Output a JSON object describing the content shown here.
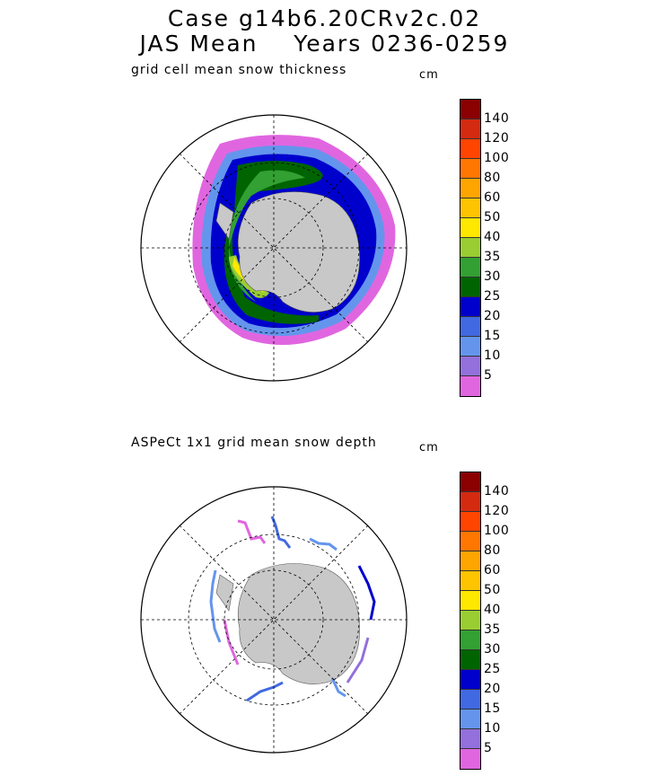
{
  "header": {
    "line1": "Case g14b6.20CRv2c.02",
    "line2": "JAS Mean    Years 0236-0259"
  },
  "panels": [
    {
      "label": "grid cell mean snow thickness",
      "unit": "cm"
    },
    {
      "label": "ASPeCt 1x1 grid mean snow depth",
      "unit": "cm"
    }
  ],
  "colorbar": {
    "levels": [
      "140",
      "120",
      "100",
      "80",
      "60",
      "50",
      "40",
      "35",
      "30",
      "25",
      "20",
      "15",
      "10",
      "5"
    ],
    "colors": [
      "#8b0000",
      "#d42a10",
      "#ff4500",
      "#ff7700",
      "#ffa500",
      "#ffc400",
      "#ffe800",
      "#9acd32",
      "#32a032",
      "#006400",
      "#0000cd",
      "#4169e1",
      "#6495ed",
      "#9370db",
      "#e066e0"
    ]
  },
  "map_colors": {
    "land": "#c8c8c8",
    "ocean": "#ffffff"
  }
}
